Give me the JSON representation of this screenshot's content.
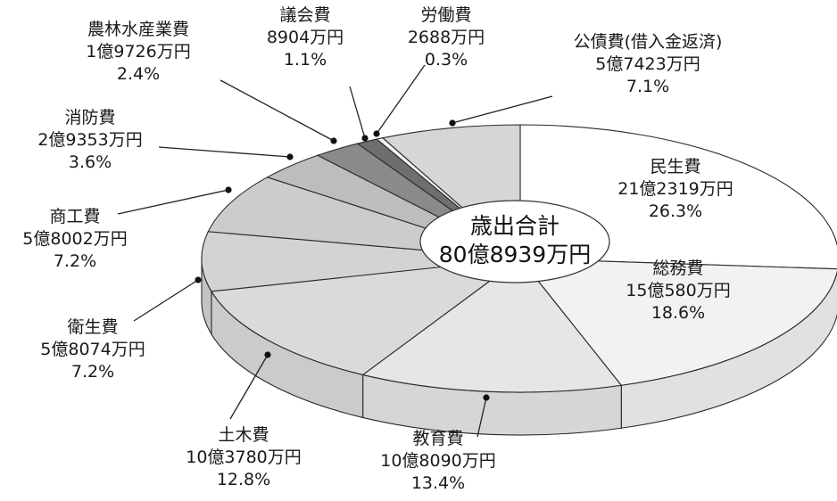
{
  "chart_data": {
    "type": "pie",
    "title": "",
    "center_label": [
      "歳出合計",
      "80億8939万円"
    ],
    "unit": "万円",
    "slices": [
      {
        "name": "民生費",
        "amount": "21億2319万円",
        "value": 212319,
        "percent": 26.3,
        "color": "#ffffff"
      },
      {
        "name": "総務費",
        "amount": "15億580万円",
        "value": 150580,
        "percent": 18.6,
        "color": "#f2f2f2"
      },
      {
        "name": "教育費",
        "amount": "10億8090万円",
        "value": 108090,
        "percent": 13.4,
        "color": "#e6e6e6"
      },
      {
        "name": "土木費",
        "amount": "10億3780万円",
        "value": 103780,
        "percent": 12.8,
        "color": "#dadada"
      },
      {
        "name": "衛生費",
        "amount": "5億8074万円",
        "value": 58074,
        "percent": 7.2,
        "color": "#d3d3d3"
      },
      {
        "name": "商工費",
        "amount": "5億8002万円",
        "value": 58002,
        "percent": 7.2,
        "color": "#cccccc"
      },
      {
        "name": "消防費",
        "amount": "2億9353万円",
        "value": 29353,
        "percent": 3.6,
        "color": "#bdbdbd"
      },
      {
        "name": "農林水産業費",
        "amount": "1億9726万円",
        "value": 19726,
        "percent": 2.4,
        "color": "#8a8a8a"
      },
      {
        "name": "議会費",
        "amount": "8904万円",
        "value": 8904,
        "percent": 1.1,
        "color": "#6e6e6e"
      },
      {
        "name": "労働費",
        "amount": "2688万円",
        "value": 2688,
        "percent": 0.3,
        "color": "#f5f5f5"
      },
      {
        "name": "公債費(借入金返済)",
        "amount": "5億7423万円",
        "value": 57423,
        "percent": 7.1,
        "color": "#d6d6d6"
      }
    ]
  }
}
